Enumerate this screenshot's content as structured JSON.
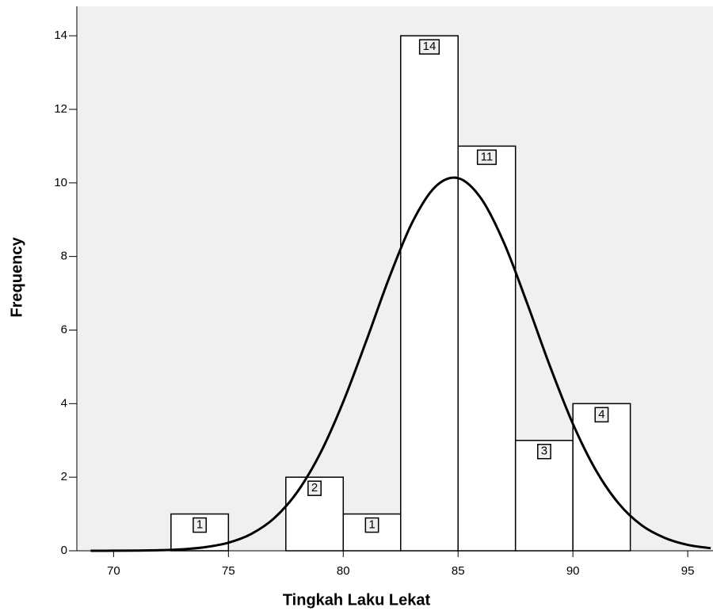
{
  "chart_data": {
    "type": "histogram",
    "xlabel": "Tingkah Laku Lekat",
    "ylabel": "Frequency",
    "bins": [
      72.5,
      75,
      77.5,
      80,
      82.5,
      85,
      87.5,
      90,
      92.5
    ],
    "counts": [
      1,
      0,
      2,
      1,
      14,
      11,
      3,
      4
    ],
    "xlim": [
      68.4,
      96.1
    ],
    "ylim": [
      0,
      14.8
    ],
    "xticks": [
      70,
      75,
      80,
      85,
      90,
      95
    ],
    "yticks": [
      0,
      2,
      4,
      6,
      8,
      10,
      12,
      14
    ],
    "bar_color": "#ffffff",
    "background": "#f0f0f0",
    "curve": {
      "x": [
        69,
        70,
        71,
        72,
        73,
        74,
        75,
        76,
        77,
        78,
        79,
        80,
        81,
        82,
        83,
        84,
        85,
        86,
        87,
        88,
        89,
        90,
        91,
        92,
        93,
        94,
        95,
        96
      ],
      "y": [
        0,
        0.002,
        0.005,
        0.015,
        0.04,
        0.1,
        0.22,
        0.46,
        0.89,
        1.6,
        2.65,
        4.05,
        5.7,
        7.42,
        8.92,
        9.89,
        10.13,
        9.58,
        8.37,
        6.74,
        5.02,
        3.45,
        2.19,
        1.28,
        0.69,
        0.35,
        0.16,
        0.07
      ],
      "color": "#000000"
    }
  }
}
